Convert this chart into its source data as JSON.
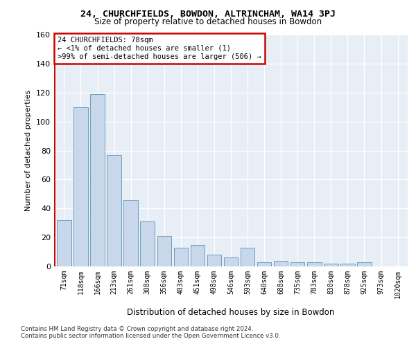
{
  "title": "24, CHURCHFIELDS, BOWDON, ALTRINCHAM, WA14 3PJ",
  "subtitle": "Size of property relative to detached houses in Bowdon",
  "xlabel": "Distribution of detached houses by size in Bowdon",
  "ylabel": "Number of detached properties",
  "bar_color": "#c8d8ea",
  "bar_edge_color": "#6a9ec0",
  "highlight_color": "#cc0000",
  "background_color": "#e8eef6",
  "categories": [
    "71sqm",
    "118sqm",
    "166sqm",
    "213sqm",
    "261sqm",
    "308sqm",
    "356sqm",
    "403sqm",
    "451sqm",
    "498sqm",
    "546sqm",
    "593sqm",
    "640sqm",
    "688sqm",
    "735sqm",
    "783sqm",
    "830sqm",
    "878sqm",
    "925sqm",
    "973sqm",
    "1020sqm"
  ],
  "bar_vals": [
    32,
    110,
    119,
    77,
    46,
    31,
    21,
    13,
    15,
    8,
    6,
    13,
    3,
    4,
    3,
    3,
    2,
    2,
    3,
    0,
    0
  ],
  "annotation_line1": "24 CHURCHFIELDS: 78sqm",
  "annotation_line2": "← <1% of detached houses are smaller (1)",
  "annotation_line3": ">99% of semi-detached houses are larger (506) →",
  "ylim": [
    0,
    160
  ],
  "yticks": [
    0,
    20,
    40,
    60,
    80,
    100,
    120,
    140,
    160
  ],
  "footer": "Contains HM Land Registry data © Crown copyright and database right 2024.\nContains public sector information licensed under the Open Government Licence v3.0."
}
